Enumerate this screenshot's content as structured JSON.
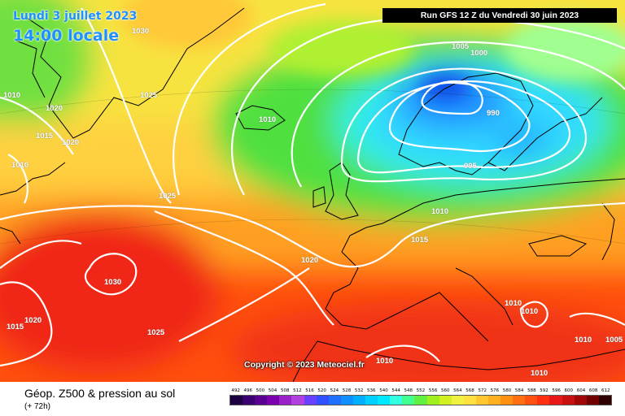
{
  "header": {
    "date": "Lundi 3 juillet 2023",
    "time": "14:00 locale",
    "run": "Run GFS 12 Z du Vendredi 30 juin 2023"
  },
  "copyright": "Copyright © 2023 Meteociel.fr",
  "footer": {
    "title": "Géop. Z500 & pression au sol",
    "subtitle": "(+ 72h)"
  },
  "colors": {
    "land_outline": "#000000",
    "isobar": "#ffffff"
  },
  "scale": {
    "labels": [
      "492",
      "496",
      "500",
      "504",
      "508",
      "512",
      "516",
      "520",
      "524",
      "528",
      "532",
      "536",
      "540",
      "544",
      "548",
      "552",
      "556",
      "560",
      "564",
      "568",
      "572",
      "576",
      "580",
      "584",
      "588",
      "592",
      "596",
      "600",
      "604",
      "608",
      "612"
    ],
    "colors": [
      "#1a0040",
      "#3a0070",
      "#5a0090",
      "#7a00b0",
      "#9a20c8",
      "#b040e0",
      "#6a40ff",
      "#3050ff",
      "#2070ff",
      "#1090ff",
      "#00b0ff",
      "#00d0ff",
      "#00e8ff",
      "#30ffe0",
      "#40ff90",
      "#60f040",
      "#a0f020",
      "#d0f020",
      "#f0f040",
      "#ffe040",
      "#ffc830",
      "#ffb020",
      "#ff9010",
      "#ff7010",
      "#ff5010",
      "#ff3010",
      "#e81818",
      "#c81010",
      "#a00808",
      "#700000",
      "#300000"
    ]
  },
  "pressure_labels": [
    {
      "text": "1030"
    },
    {
      "text": "1025"
    },
    {
      "text": "1010"
    },
    {
      "text": "1020"
    },
    {
      "text": "1015"
    },
    {
      "text": "1020"
    },
    {
      "text": "1010"
    },
    {
      "text": "1010"
    },
    {
      "text": "1025"
    },
    {
      "text": "1005"
    },
    {
      "text": "1000"
    },
    {
      "text": "990"
    },
    {
      "text": "995"
    },
    {
      "text": "1010"
    },
    {
      "text": "1015"
    },
    {
      "text": "1020"
    },
    {
      "text": "1030"
    },
    {
      "text": "1020"
    },
    {
      "text": "1015"
    },
    {
      "text": "1025"
    },
    {
      "text": "1010"
    },
    {
      "text": "1010"
    },
    {
      "text": "1010"
    },
    {
      "text": "1010"
    },
    {
      "text": "1010"
    },
    {
      "text": "1005"
    }
  ]
}
